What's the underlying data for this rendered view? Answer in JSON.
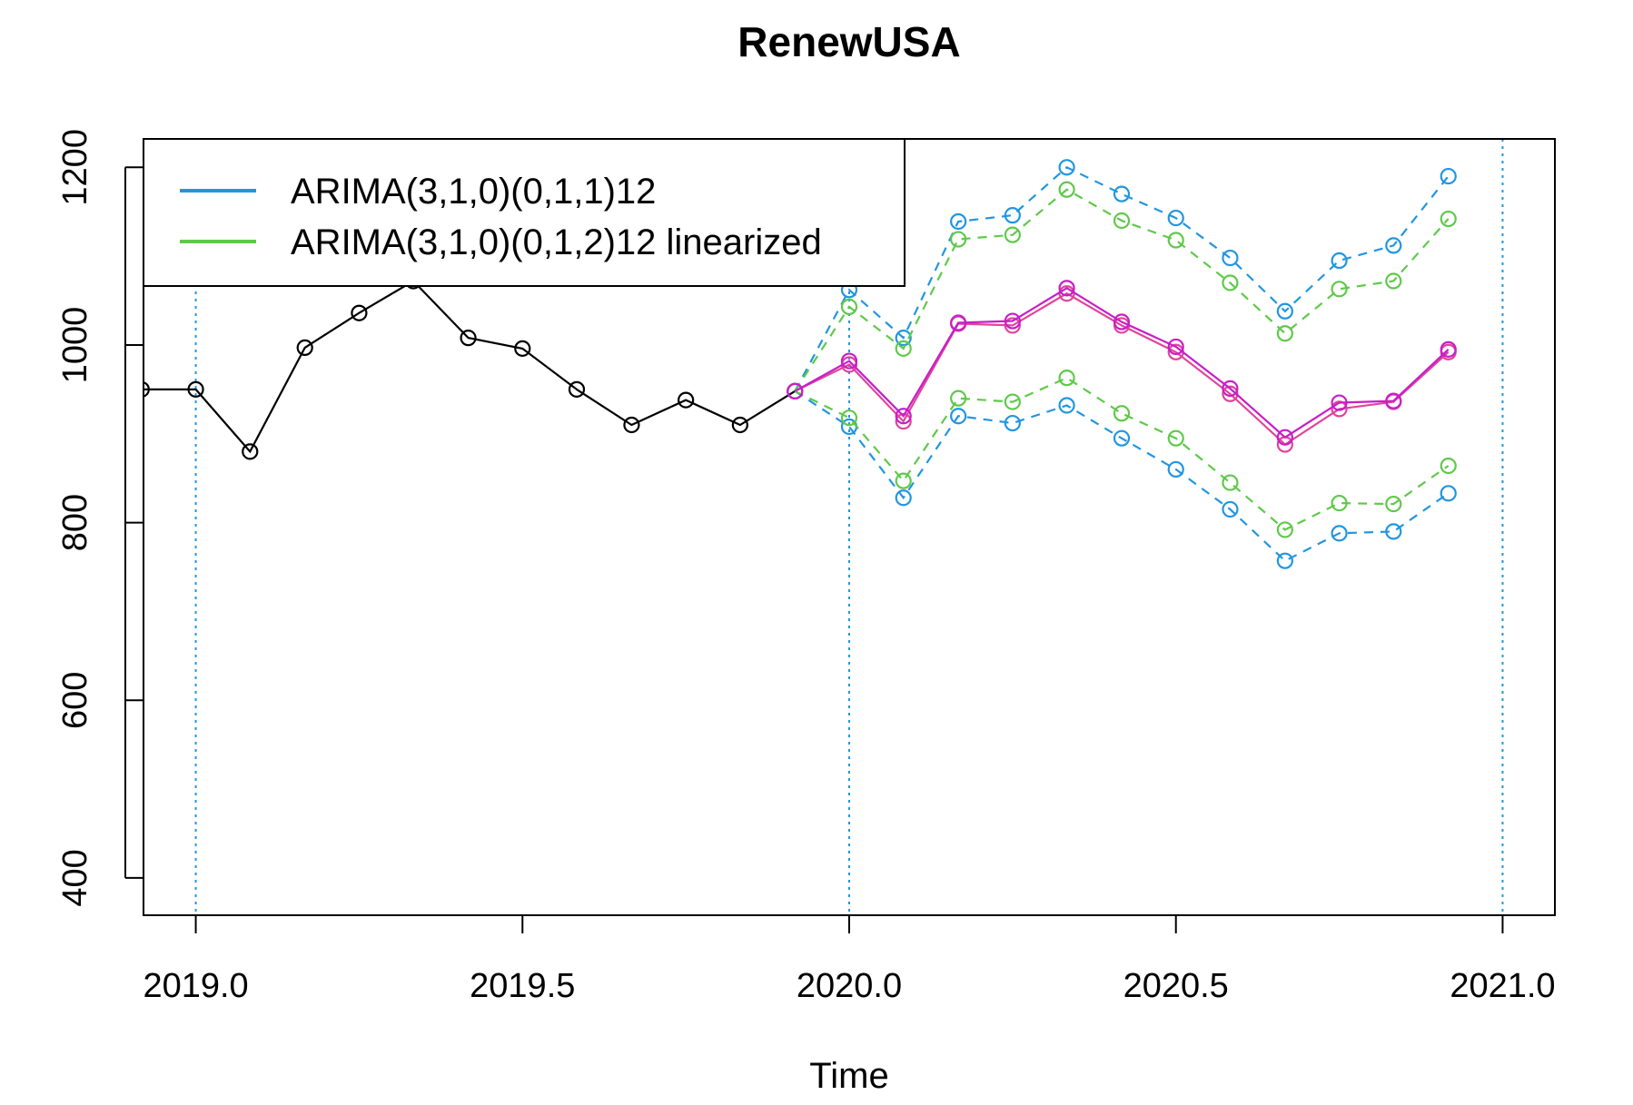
{
  "chart_data": {
    "type": "line",
    "title": "RenewUSA",
    "xlabel": "Time",
    "ylabel": "",
    "xlim": [
      2018.92,
      2021.08
    ],
    "ylim": [
      358,
      1232
    ],
    "xticks": [
      2019.0,
      2019.5,
      2020.0,
      2020.5,
      2021.0
    ],
    "xtick_labels": [
      "2019.0",
      "2019.5",
      "2020.0",
      "2020.5",
      "2021.0"
    ],
    "yticks": [
      400,
      600,
      800,
      1000,
      1200
    ],
    "ytick_labels": [
      "400",
      "600",
      "800",
      "1000",
      "1200"
    ],
    "vlines": [
      2019.0,
      2020.0,
      2021.0
    ],
    "grid": false,
    "legend_position": "top-left",
    "legend": [
      {
        "label": "ARIMA(3,1,0)(0,1,1)12",
        "color": "#2196e0"
      },
      {
        "label": "ARIMA(3,1,0)(0,1,2)12 linearized",
        "color": "#5fc94a"
      }
    ],
    "colors": {
      "observed": "#000000",
      "model1": "#2196e0",
      "model2": "#5fc94a",
      "forecast1": "#e0459a",
      "forecast2": "#c81ec8",
      "vline": "#2196e0"
    },
    "observed": {
      "x": [
        2018.917,
        2019.0,
        2019.083,
        2019.167,
        2019.25,
        2019.333,
        2019.417,
        2019.5,
        2019.583,
        2019.667,
        2019.75,
        2019.833,
        2019.917
      ],
      "y": [
        950,
        950,
        880,
        997,
        1036,
        1072,
        1008,
        996,
        950,
        910,
        938,
        910,
        948
      ]
    },
    "forecast_x": [
      2019.917,
      2020.0,
      2020.083,
      2020.167,
      2020.25,
      2020.333,
      2020.417,
      2020.5,
      2020.583,
      2020.667,
      2020.75,
      2020.833,
      2020.917
    ],
    "series": [
      {
        "name": "ARIMA(3,1,0)(0,1,1)12",
        "role": "upper",
        "color": "#2196e0",
        "dashed": true,
        "values": [
          948,
          1062,
          1008,
          1139,
          1146,
          1200,
          1170,
          1143,
          1098,
          1038,
          1095,
          1112,
          1190
        ]
      },
      {
        "name": "ARIMA(3,1,0)(0,1,1)12",
        "role": "lower",
        "color": "#2196e0",
        "dashed": true,
        "values": [
          948,
          908,
          828,
          920,
          912,
          932,
          895,
          860,
          815,
          757,
          788,
          790,
          833
        ]
      },
      {
        "name": "ARIMA(3,1,0)(0,1,2)12 linearized",
        "role": "upper",
        "color": "#5fc94a",
        "dashed": true,
        "values": [
          948,
          1043,
          996,
          1119,
          1124,
          1175,
          1140,
          1118,
          1070,
          1013,
          1063,
          1072,
          1142
        ]
      },
      {
        "name": "ARIMA(3,1,0)(0,1,2)12 linearized",
        "role": "lower",
        "color": "#5fc94a",
        "dashed": true,
        "values": [
          948,
          918,
          847,
          940,
          936,
          963,
          923,
          895,
          845,
          792,
          822,
          821,
          864
        ]
      },
      {
        "role": "point",
        "color": "#e0459a",
        "dashed": false,
        "values": [
          948,
          978,
          914,
          1024,
          1022,
          1058,
          1022,
          992,
          945,
          888,
          928,
          936,
          992
        ]
      },
      {
        "role": "point",
        "color": "#c81ec8",
        "dashed": false,
        "values": [
          948,
          982,
          920,
          1025,
          1027,
          1064,
          1026,
          998,
          951,
          896,
          935,
          937,
          995
        ]
      }
    ]
  }
}
